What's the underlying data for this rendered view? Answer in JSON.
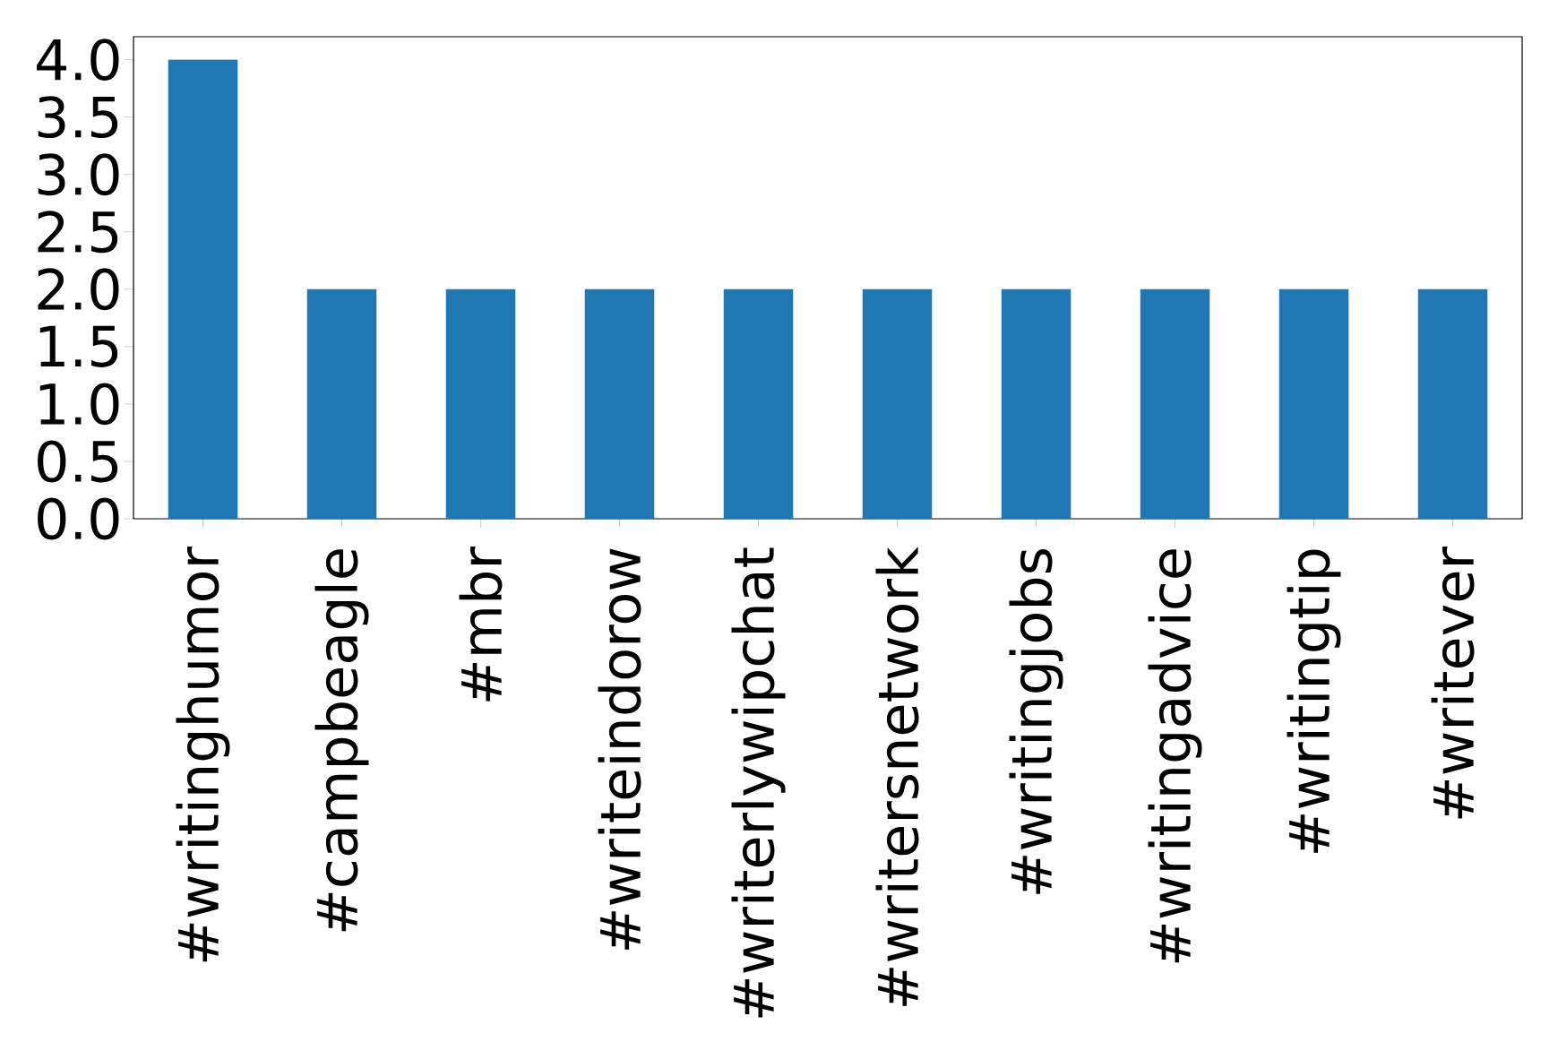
{
  "chart_data": {
    "type": "bar",
    "categories": [
      "#writinghumor",
      "#campbeagle",
      "#mbr",
      "#writeindorow",
      "#writerlywipchat",
      "#writersnetwork",
      "#writingjobs",
      "#writingadvice",
      "#writingtip",
      "#writever"
    ],
    "values": [
      4,
      2,
      2,
      2,
      2,
      2,
      2,
      2,
      2,
      2
    ],
    "color": "#1f77b4",
    "ylim": [
      0,
      4.2
    ],
    "yticks": [
      {
        "value": 0,
        "label": "0.0"
      },
      {
        "value": 0.5,
        "label": "0.5"
      },
      {
        "value": 1,
        "label": "1.0"
      },
      {
        "value": 1.5,
        "label": "1.5"
      },
      {
        "value": 2,
        "label": "2.0"
      },
      {
        "value": 2.5,
        "label": "2.5"
      },
      {
        "value": 3,
        "label": "3.0"
      },
      {
        "value": 3.5,
        "label": "3.5"
      },
      {
        "value": 4,
        "label": "4.0"
      }
    ],
    "grid": false
  }
}
